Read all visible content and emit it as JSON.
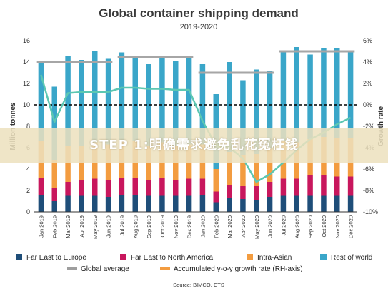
{
  "chart_data": {
    "type": "bar",
    "title": "Global container shipping demand",
    "subtitle": "2019-2020",
    "ylabel": "Million tonnes",
    "y2label": "Growth rate",
    "ylim": [
      0,
      16
    ],
    "y2lim": [
      -10,
      6
    ],
    "yticks": [
      0,
      2,
      4,
      6,
      8,
      10,
      12,
      14,
      16
    ],
    "y2ticks": [
      "-10%",
      "-8%",
      "-6%",
      "-4%",
      "-2%",
      "0%",
      "2%",
      "4%",
      "6%"
    ],
    "categories": [
      "Jan 2019",
      "Feb 2019",
      "Mar 2019",
      "Apr 2019",
      "May 2019",
      "Jun 2019",
      "Jul 2019",
      "Aug 2019",
      "Sep 2019",
      "Oct 2019",
      "Nov 2019",
      "Dec 2019",
      "Jan 2020",
      "Feb 2020",
      "Mar 2020",
      "Apr 2020",
      "May 2020",
      "Jun 2020",
      "Jul 2020",
      "Aug 2020",
      "Sep 2020",
      "Oct 2020",
      "Nov 2020",
      "Dec 2020"
    ],
    "series": [
      {
        "name": "Far East to Europe",
        "values": [
          1.6,
          1.0,
          1.5,
          1.5,
          1.5,
          1.4,
          1.6,
          1.6,
          1.5,
          1.5,
          1.5,
          1.5,
          1.6,
          0.9,
          1.3,
          1.2,
          1.1,
          1.4,
          1.5,
          1.5,
          1.5,
          1.5,
          1.5,
          1.5
        ]
      },
      {
        "name": "Far East to North America",
        "values": [
          1.6,
          1.2,
          1.3,
          1.5,
          1.6,
          1.6,
          1.6,
          1.6,
          1.5,
          1.7,
          1.5,
          1.6,
          1.5,
          1.0,
          1.2,
          1.2,
          1.3,
          1.4,
          1.6,
          1.6,
          1.9,
          1.9,
          1.8,
          1.8
        ]
      },
      {
        "name": "Intra-Asian",
        "values": [
          3.4,
          2.6,
          3.4,
          3.2,
          3.4,
          3.3,
          3.5,
          3.4,
          3.2,
          3.3,
          3.2,
          3.2,
          3.2,
          2.1,
          3.1,
          2.9,
          3.0,
          3.1,
          3.5,
          3.4,
          3.4,
          3.6,
          3.6,
          3.6
        ]
      },
      {
        "name": "Rest of world",
        "values": [
          7.3,
          6.9,
          8.4,
          8.0,
          8.5,
          8.0,
          8.2,
          7.9,
          7.6,
          8.0,
          7.9,
          8.3,
          7.5,
          7.0,
          8.4,
          7.0,
          7.9,
          7.3,
          8.3,
          8.9,
          7.9,
          8.3,
          8.4,
          8.2
        ]
      }
    ],
    "global_average": [
      {
        "from": "Jan 2019",
        "to": "Jun 2019",
        "value": 14.0
      },
      {
        "from": "Jul 2019",
        "to": "Dec 2019",
        "value": 14.5
      },
      {
        "from": "Jan 2020",
        "to": "Jun 2020",
        "value": 13.0
      },
      {
        "from": "Jul 2020",
        "to": "Dec 2020",
        "value": 15.0
      }
    ],
    "growth_rate": [
      2.8,
      -1.6,
      1.1,
      1.2,
      1.2,
      1.2,
      1.6,
      1.6,
      1.5,
      1.5,
      1.4,
      1.4,
      -1.5,
      -3.8,
      -4.0,
      -5.0,
      -7.2,
      -6.5,
      -5.4,
      -4.2,
      -3.2,
      -2.6,
      -1.8,
      -1.2
    ],
    "legend": [
      {
        "label": "Far East to Europe",
        "color": "#1f4e79",
        "shape": "square"
      },
      {
        "label": "Far East to North America",
        "color": "#c8175d",
        "shape": "square"
      },
      {
        "label": "Intra-Asian",
        "color": "#f39c40",
        "shape": "square"
      },
      {
        "label": "Rest of world",
        "color": "#3aa6c9",
        "shape": "square"
      },
      {
        "label": "Global average",
        "color": "#9e9e9e",
        "shape": "line"
      },
      {
        "label": "Accumulated y-o-y growth rate (RH-axis)",
        "color": "#f39c40",
        "shape": "line"
      }
    ],
    "source": "Source: BIMCO, CTS",
    "colors": {
      "far_east_europe": "#1f4e79",
      "far_east_na": "#c8175d",
      "intra_asian": "#f39c40",
      "rest_of_world": "#3aa6c9",
      "global_average": "#a6a6a6",
      "growth_rate": "#5cc7b2",
      "reference_line": "#000000"
    },
    "grid": false,
    "legend_position": "bottom"
  },
  "overlay": {
    "banner_text": "STEP 1:明确需求避免乱花冤枉钱"
  }
}
